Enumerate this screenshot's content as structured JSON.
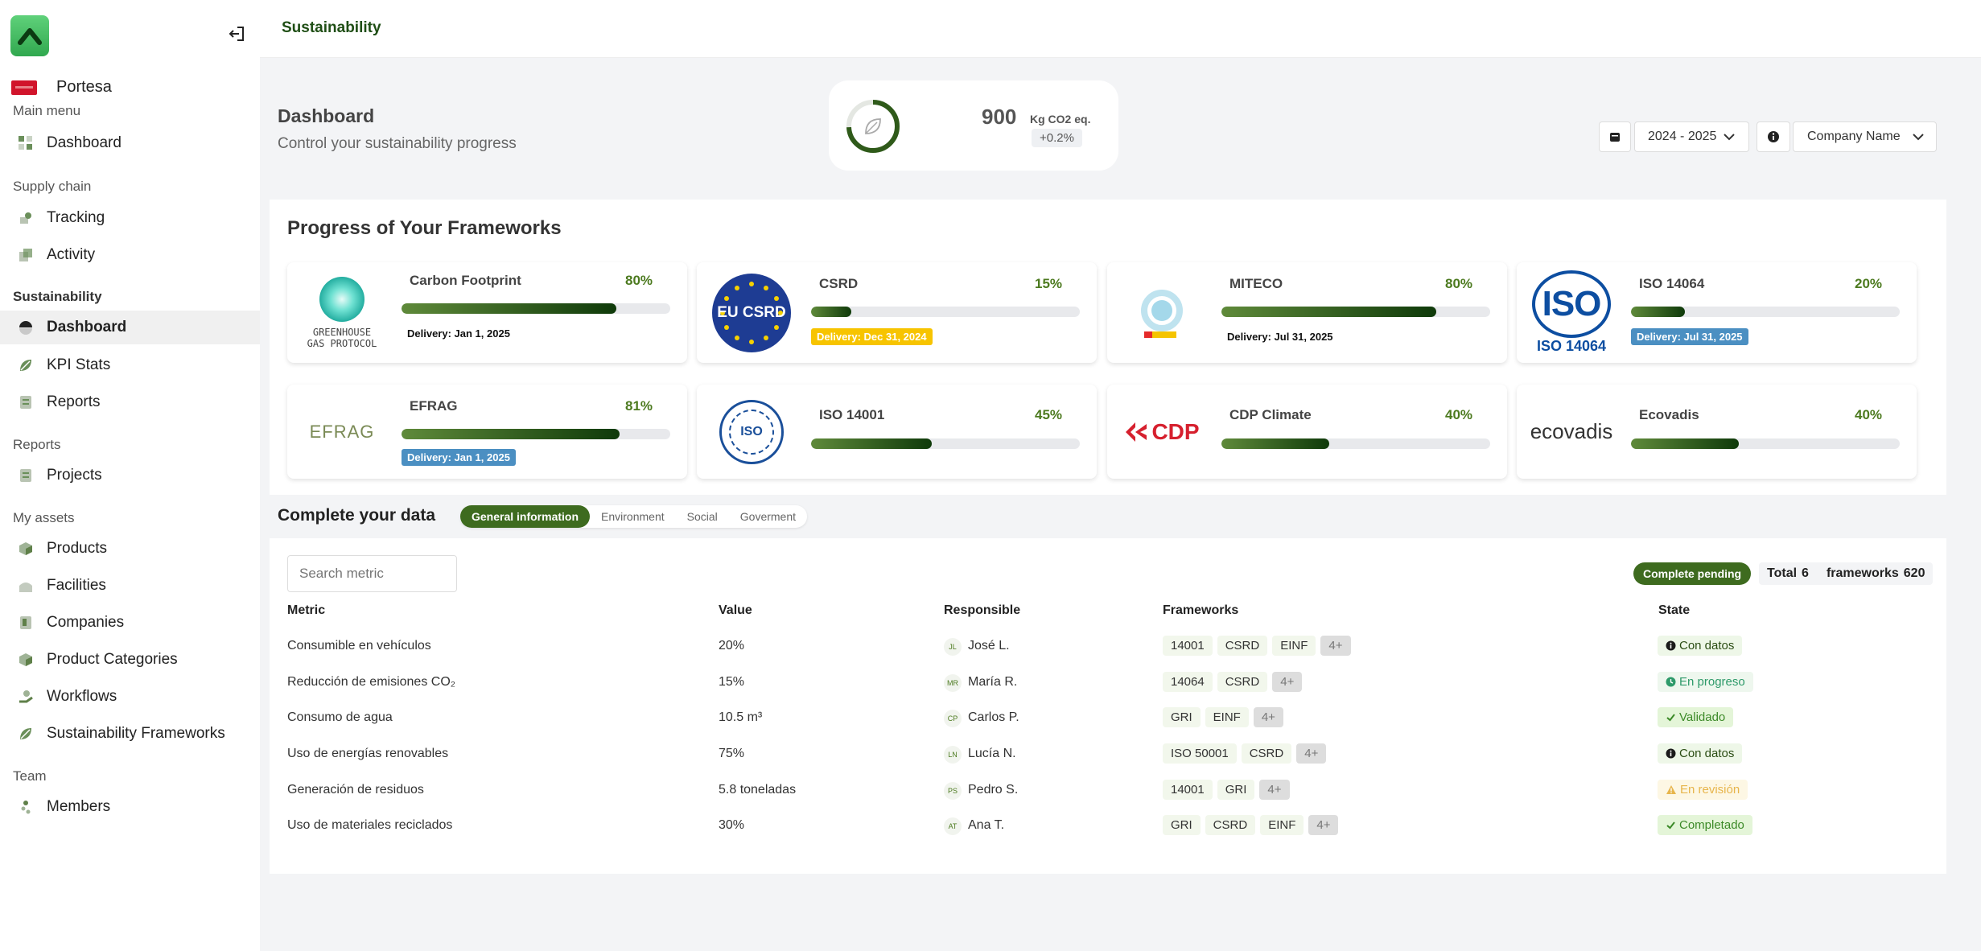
{
  "sidebar": {
    "org_name": "Portesa",
    "sections": {
      "main_menu": "Main menu",
      "supply_chain": "Supply chain",
      "sustainability": "Sustainability",
      "reports": "Reports",
      "my_assets": "My assets",
      "team": "Team"
    },
    "items": {
      "dashboard_main": "Dashboard",
      "tracking": "Tracking",
      "activity": "Activity",
      "dashboard_sus": "Dashboard",
      "kpi_stats": "KPI Stats",
      "reports": "Reports",
      "projects": "Projects",
      "products": "Products",
      "facilities": "Facilities",
      "companies": "Companies",
      "product_categories": "Product Categories",
      "workflows": "Workflows",
      "sustainability_frameworks": "Sustainability Frameworks",
      "members": "Members"
    }
  },
  "header": {
    "title": "Sustainability"
  },
  "dashboard": {
    "title": "Dashboard",
    "subtitle": "Control your sustainability progress",
    "co2_value": "900",
    "co2_unit": "Kg CO2 eq.",
    "co2_change": "+0.2%",
    "year_selected": "2024 - 2025",
    "company_selected": "Company Name"
  },
  "frameworks": {
    "title": "Progress of Your Frameworks",
    "items": [
      {
        "name": "Carbon Footprint",
        "percent": "80%",
        "progress": 80,
        "delivery": "Delivery: Jan 1, 2025",
        "logo_text": "GREENHOUSE\nGAS PROTOCOL"
      },
      {
        "name": "CSRD",
        "percent": "15%",
        "progress": 15,
        "delivery": "Delivery: Dec 31, 2024",
        "logo_text": "EU CSRD"
      },
      {
        "name": "MITECO",
        "percent": "80%",
        "progress": 80,
        "delivery": "Delivery: Jul 31, 2025",
        "logo_text": ""
      },
      {
        "name": "ISO 14064",
        "percent": "20%",
        "progress": 20,
        "delivery": "Delivery: Jul 31, 2025",
        "logo_text": "ISO 14064"
      },
      {
        "name": "EFRAG",
        "percent": "81%",
        "progress": 81,
        "delivery": "Delivery: Jan 1, 2025",
        "logo_text": "EFRAG"
      },
      {
        "name": "ISO 14001",
        "percent": "45%",
        "progress": 45,
        "delivery": "",
        "logo_text": "ISO"
      },
      {
        "name": "CDP Climate",
        "percent": "40%",
        "progress": 40,
        "delivery": "",
        "logo_text": "CDP"
      },
      {
        "name": "Ecovadis",
        "percent": "40%",
        "progress": 40,
        "delivery": "",
        "logo_text": "ecovadis"
      }
    ]
  },
  "complete_data": {
    "title": "Complete your data",
    "tabs": [
      "General information",
      "Environment",
      "Social",
      "Goverment"
    ],
    "search_placeholder": "Search metric",
    "complete_pending": "Complete pending",
    "total_label": "Total",
    "total_value": "6",
    "frameworks_label": "frameworks",
    "frameworks_value": "620",
    "columns": [
      "Metric",
      "Value",
      "Responsible",
      "Frameworks",
      "State"
    ],
    "rows": [
      {
        "metric": "Consumible en vehículos",
        "value": "20%",
        "initials": "JL",
        "responsible": "José L.",
        "frameworks": [
          "14001",
          "CSRD",
          "EINF"
        ],
        "more": "4+",
        "state": "Con datos",
        "state_type": "datos"
      },
      {
        "metric": "Reducción de emisiones CO₂",
        "value": "15%",
        "initials": "MR",
        "responsible": "María R.",
        "frameworks": [
          "14064",
          "CSRD"
        ],
        "more": "4+",
        "state": "En progreso",
        "state_type": "prog"
      },
      {
        "metric": "Consumo de agua",
        "value": "10.5 m³",
        "initials": "CP",
        "responsible": "Carlos P.",
        "frameworks": [
          "GRI",
          "EINF"
        ],
        "more": "4+",
        "state": "Validado",
        "state_type": "val"
      },
      {
        "metric": "Uso de energías renovables",
        "value": "75%",
        "initials": "LN",
        "responsible": "Lucía N.",
        "frameworks": [
          "ISO 50001",
          "CSRD"
        ],
        "more": "4+",
        "state": "Con datos",
        "state_type": "datos"
      },
      {
        "metric": "Generación de residuos",
        "value": "5.8 toneladas",
        "initials": "PS",
        "responsible": "Pedro S.",
        "frameworks": [
          "14001",
          "GRI"
        ],
        "more": "4+",
        "state": "En revisión",
        "state_type": "rev"
      },
      {
        "metric": "Uso de materiales reciclados",
        "value": "30%",
        "initials": "AT",
        "responsible": "Ana T.",
        "frameworks": [
          "GRI",
          "CSRD",
          "EINF"
        ],
        "more": "4+",
        "state": "Completado",
        "state_type": "comp"
      }
    ]
  }
}
